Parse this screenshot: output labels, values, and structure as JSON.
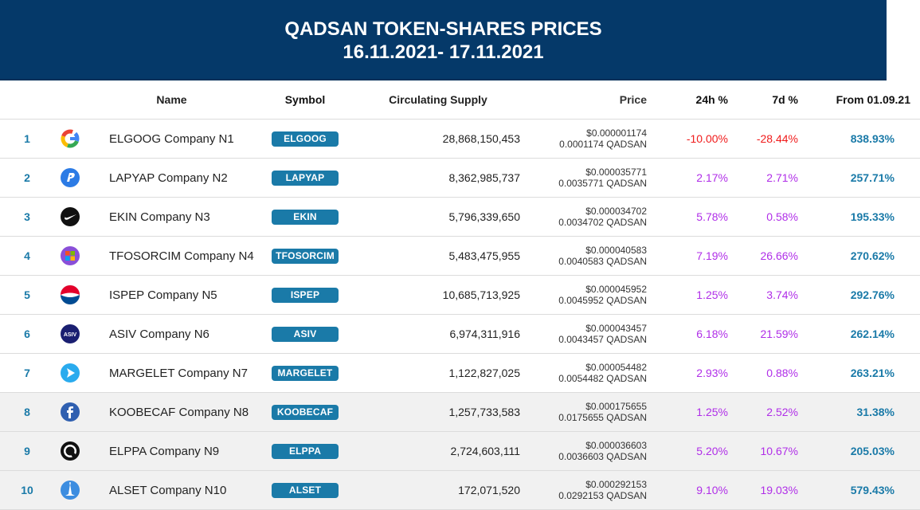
{
  "header": {
    "title": "QADSAN TOKEN-SHARES PRICES",
    "date_range": "16.11.2021- 17.11.2021"
  },
  "columns": {
    "name": "Name",
    "symbol": "Symbol",
    "supply": "Circulating Supply",
    "price": "Price",
    "change_24h": "24h %",
    "change_7d": "7d %",
    "since": "From 01.09.21"
  },
  "colors": {
    "header_bg": "#053969",
    "accent": "#1a7aa8",
    "negative": "#f01b1b",
    "positive": "#b02ee8"
  },
  "rows": [
    {
      "rank": "1",
      "icon": "google-style-icon",
      "name": "ELGOOG Company N1",
      "symbol": "ELGOOG",
      "supply": "28,868,150,453",
      "price_usd": "$0.000001174",
      "price_qadsan": "0.0001174 QADSAN",
      "change_24h": "-10.00%",
      "change_7d": "-28.44%",
      "since": "838.93%"
    },
    {
      "rank": "2",
      "icon": "paypal-style-icon",
      "name": "LAPYAP Company N2",
      "symbol": "LAPYAP",
      "supply": "8,362,985,737",
      "price_usd": "$0.000035771",
      "price_qadsan": "0.0035771 QADSAN",
      "change_24h": "2.17%",
      "change_7d": "2.71%",
      "since": "257.71%"
    },
    {
      "rank": "3",
      "icon": "nike-style-icon",
      "name": "EKIN Company N3",
      "symbol": "EKIN",
      "supply": "5,796,339,650",
      "price_usd": "$0.000034702",
      "price_qadsan": "0.0034702 QADSAN",
      "change_24h": "5.78%",
      "change_7d": "0.58%",
      "since": "195.33%"
    },
    {
      "rank": "4",
      "icon": "microsoft-style-icon",
      "name": "TFOSORCIM Company N4",
      "symbol": "TFOSORCIM",
      "supply": "5,483,475,955",
      "price_usd": "$0.000040583",
      "price_qadsan": "0.0040583 QADSAN",
      "change_24h": "7.19%",
      "change_7d": "26.66%",
      "since": "270.62%"
    },
    {
      "rank": "5",
      "icon": "pepsi-style-icon",
      "name": "ISPEP Company N5",
      "symbol": "ISPEP",
      "supply": "10,685,713,925",
      "price_usd": "$0.000045952",
      "price_qadsan": "0.0045952 QADSAN",
      "change_24h": "1.25%",
      "change_7d": "3.74%",
      "since": "292.76%"
    },
    {
      "rank": "6",
      "icon": "visa-style-icon",
      "icon_text": "ASIV",
      "name": "ASIV Company N6",
      "symbol": "ASIV",
      "supply": "6,974,311,916",
      "price_usd": "$0.000043457",
      "price_qadsan": "0.0043457 QADSAN",
      "change_24h": "6.18%",
      "change_7d": "21.59%",
      "since": "262.14%"
    },
    {
      "rank": "7",
      "icon": "telegram-style-icon",
      "name": "MARGELET Company N7",
      "symbol": "MARGELET",
      "supply": "1,122,827,025",
      "price_usd": "$0.000054482",
      "price_qadsan": "0.0054482 QADSAN",
      "change_24h": "2.93%",
      "change_7d": "0.88%",
      "since": "263.21%"
    },
    {
      "rank": "8",
      "icon": "facebook-style-icon",
      "name": "KOOBECAF Company N8",
      "symbol": "KOOBECAF",
      "supply": "1,257,733,583",
      "price_usd": "$0.000175655",
      "price_qadsan": "0.0175655 QADSAN",
      "change_24h": "1.25%",
      "change_7d": "2.52%",
      "since": "31.38%"
    },
    {
      "rank": "9",
      "icon": "apple-style-icon",
      "name": "ELPPA Company N9",
      "symbol": "ELPPA",
      "supply": "2,724,603,111",
      "price_usd": "$0.000036603",
      "price_qadsan": "0.0036603 QADSAN",
      "change_24h": "5.20%",
      "change_7d": "10.67%",
      "since": "205.03%"
    },
    {
      "rank": "10",
      "icon": "tesla-style-icon",
      "name": "ALSET Company N10",
      "symbol": "ALSET",
      "supply": "172,071,520",
      "price_usd": "$0.000292153",
      "price_qadsan": "0.0292153 QADSAN",
      "change_24h": "9.10%",
      "change_7d": "19.03%",
      "since": "579.43%"
    }
  ]
}
